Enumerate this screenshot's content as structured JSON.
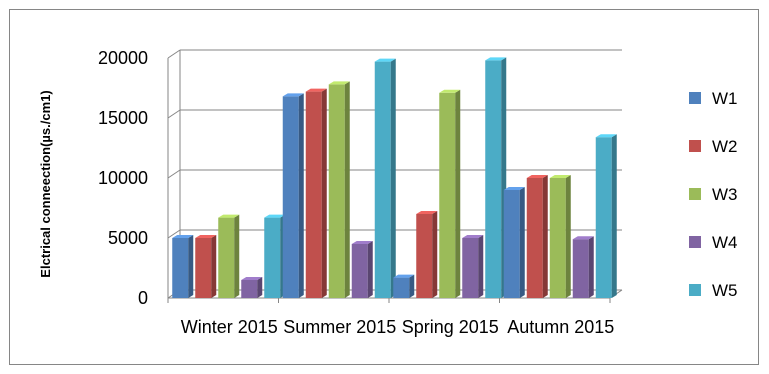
{
  "chart_data": {
    "type": "bar",
    "title": "",
    "xlabel": "",
    "ylabel": "Elctrical conneection(µs./cm1)",
    "ylim": [
      0,
      20000
    ],
    "yticks": [
      0,
      5000,
      10000,
      15000,
      20000
    ],
    "categories": [
      "Winter 2015",
      "Summer 2015",
      "Spring 2015",
      "Autumn 2015"
    ],
    "series": [
      {
        "name": "W1",
        "values": [
          5000,
          16800,
          1700,
          9000
        ],
        "color": "#4F81BD"
      },
      {
        "name": "W2",
        "values": [
          5000,
          17200,
          7000,
          10000
        ],
        "color": "#C0504D"
      },
      {
        "name": "W3",
        "values": [
          6700,
          17800,
          17100,
          10000
        ],
        "color": "#9BBB59"
      },
      {
        "name": "W4",
        "values": [
          1500,
          4500,
          5000,
          4900
        ],
        "color": "#8064A2"
      },
      {
        "name": "W5",
        "values": [
          6700,
          19700,
          19800,
          13400
        ],
        "color": "#4BACC6"
      }
    ],
    "grid": true,
    "legend": "right"
  }
}
